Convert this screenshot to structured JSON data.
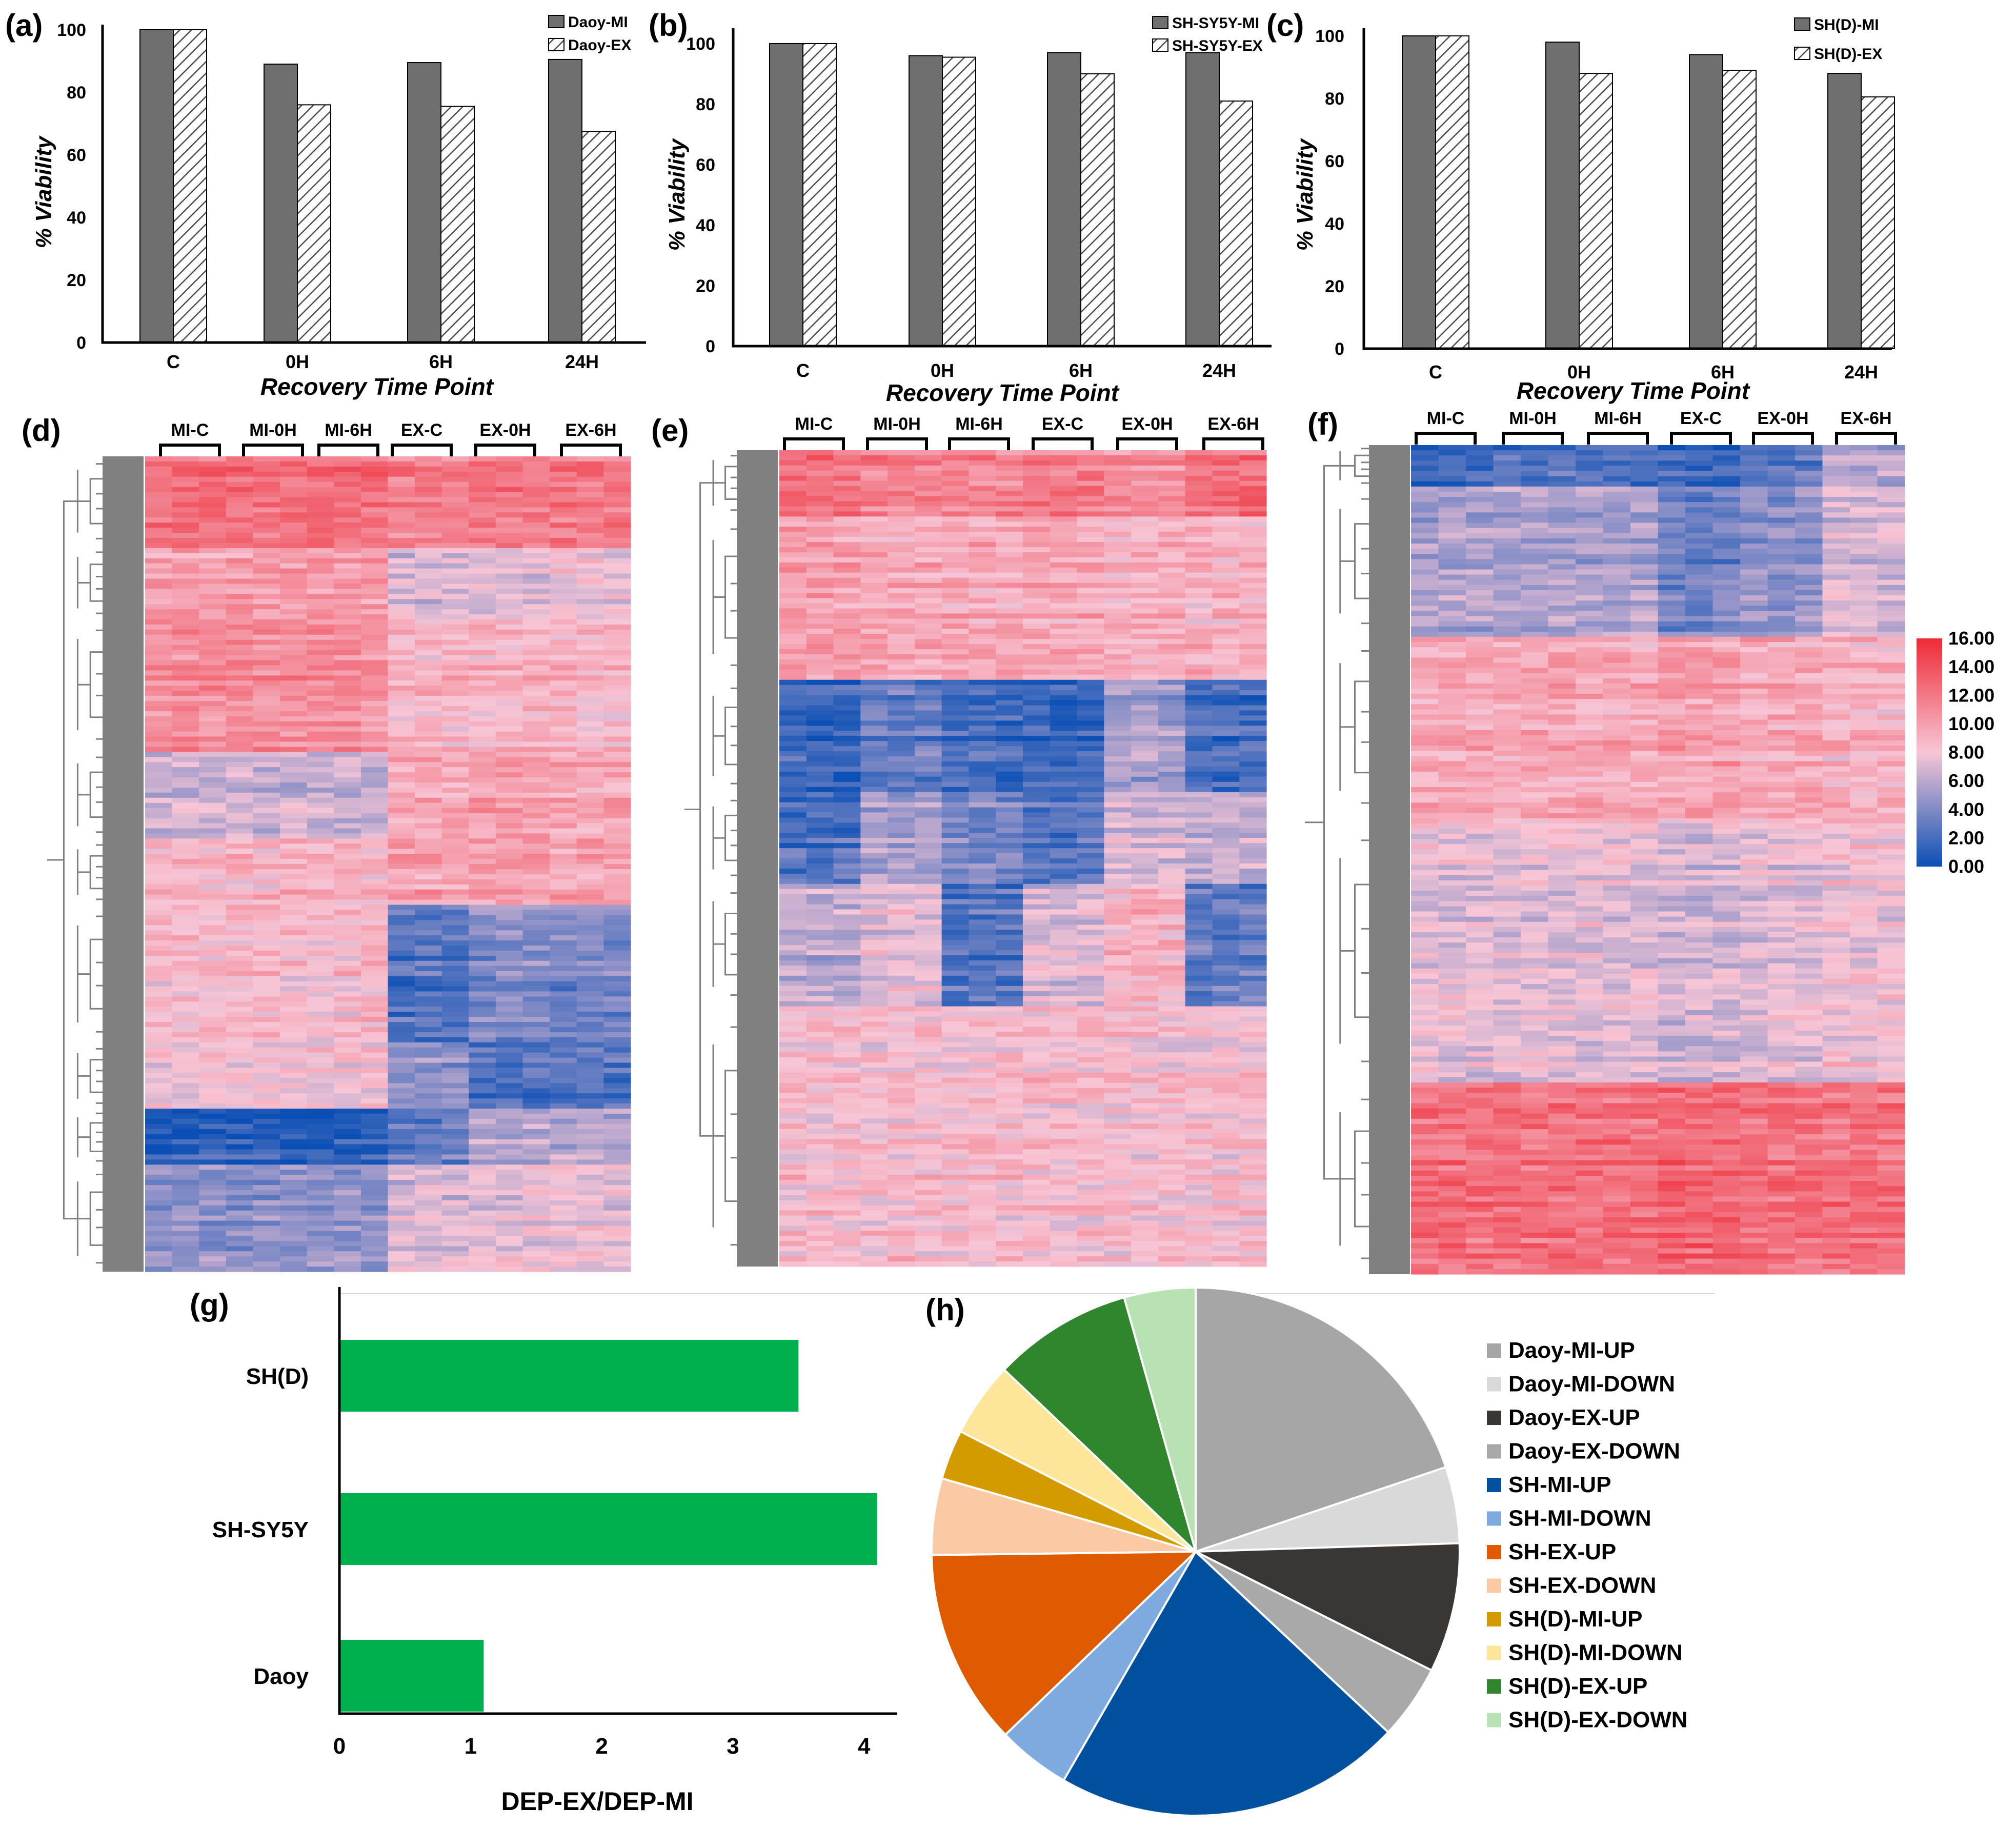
{
  "colors": {
    "bar_mi": "#6f6f6f",
    "hatch": "#4a4a4a",
    "green": "#00b04f",
    "heat_low": "#0a4fb5",
    "heat_mid": "#f7c6d6",
    "heat_high": "#ee2b36",
    "dendro": "#808080"
  },
  "chart_data": [
    {
      "id": "a",
      "panel_label": "(a)",
      "type": "bar",
      "categories": [
        "C",
        "0H",
        "6H",
        "24H"
      ],
      "series": [
        {
          "name": "Daoy-MI",
          "values": [
            100,
            89,
            89.5,
            90.5
          ]
        },
        {
          "name": "Daoy-EX",
          "values": [
            100,
            76,
            75.5,
            67.5
          ]
        }
      ],
      "ylim": [
        0,
        100
      ],
      "yticks": [
        "0",
        "20",
        "40",
        "60",
        "80",
        "100"
      ],
      "xlabel": "Recovery Time Point",
      "ylabel": "% Viability"
    },
    {
      "id": "b",
      "panel_label": "(b)",
      "type": "bar",
      "categories": [
        "C",
        "0H",
        "6H",
        "24H"
      ],
      "series": [
        {
          "name": "SH-SY5Y-MI",
          "values": [
            100,
            96,
            97,
            97
          ]
        },
        {
          "name": "SH-SY5Y-EX",
          "values": [
            100,
            95.5,
            90,
            81
          ]
        }
      ],
      "ylim": [
        0,
        100
      ],
      "yticks": [
        "0",
        "20",
        "40",
        "60",
        "80",
        "100"
      ],
      "xlabel": "Recovery Time Point",
      "ylabel": "% Viability"
    },
    {
      "id": "c",
      "panel_label": "(c)",
      "type": "bar",
      "categories": [
        "C",
        "0H",
        "6H",
        "24H"
      ],
      "series": [
        {
          "name": "SH(D)-MI",
          "values": [
            100,
            98,
            94,
            88
          ]
        },
        {
          "name": "SH(D)-EX",
          "values": [
            100,
            88,
            89,
            80.5
          ]
        }
      ],
      "ylim": [
        0,
        100
      ],
      "yticks": [
        "0",
        "20",
        "40",
        "60",
        "80",
        "100"
      ],
      "xlabel": "Recovery Time Point",
      "ylabel": "% Viability"
    },
    {
      "id": "d",
      "panel_label": "(d)",
      "type": "heatmap",
      "groups": [
        "MI-C",
        "MI-0H",
        "MI-6H",
        "EX-C",
        "EX-0H",
        "EX-6H"
      ],
      "blocks": [
        {
          "start": 0.0,
          "end": 0.11,
          "levels": [
            12.5,
            12.5,
            12.5,
            11.5,
            12,
            12
          ]
        },
        {
          "start": 0.11,
          "end": 0.2,
          "levels": [
            10,
            10,
            10,
            7,
            7,
            7.5
          ]
        },
        {
          "start": 0.2,
          "end": 0.36,
          "levels": [
            11,
            11,
            11,
            9,
            9,
            9
          ]
        },
        {
          "start": 0.36,
          "end": 0.47,
          "levels": [
            6.5,
            6.5,
            6.5,
            9.5,
            10,
            9.5
          ]
        },
        {
          "start": 0.47,
          "end": 0.55,
          "levels": [
            9,
            9,
            9,
            10,
            10,
            10
          ]
        },
        {
          "start": 0.55,
          "end": 0.72,
          "levels": [
            8.5,
            8.5,
            8.5,
            2.5,
            4,
            3.5
          ]
        },
        {
          "start": 0.72,
          "end": 0.8,
          "levels": [
            8,
            8,
            8,
            4.5,
            2.5,
            2.5
          ]
        },
        {
          "start": 0.8,
          "end": 0.87,
          "levels": [
            1,
            1,
            1,
            3,
            6,
            6
          ]
        },
        {
          "start": 0.87,
          "end": 1.0,
          "levels": [
            4.5,
            4.5,
            4.5,
            7,
            7.5,
            7.5
          ]
        }
      ]
    },
    {
      "id": "e",
      "panel_label": "(e)",
      "type": "heatmap",
      "groups": [
        "MI-C",
        "MI-0H",
        "MI-6H",
        "EX-C",
        "EX-0H",
        "EX-6H"
      ],
      "blocks": [
        {
          "start": 0.0,
          "end": 0.08,
          "levels": [
            12.5,
            11.5,
            11.5,
            12,
            11,
            12.5
          ]
        },
        {
          "start": 0.08,
          "end": 0.28,
          "levels": [
            10,
            9.5,
            9.5,
            9.5,
            9,
            9
          ]
        },
        {
          "start": 0.28,
          "end": 0.42,
          "levels": [
            1.5,
            3,
            2,
            1.5,
            5,
            2
          ]
        },
        {
          "start": 0.42,
          "end": 0.53,
          "levels": [
            2.5,
            5.5,
            4,
            2.5,
            7,
            6.5
          ]
        },
        {
          "start": 0.53,
          "end": 0.68,
          "levels": [
            6,
            7.5,
            2.5,
            7,
            9,
            3
          ]
        },
        {
          "start": 0.68,
          "end": 1.0,
          "levels": [
            8.5,
            8.5,
            8.5,
            8.5,
            8.5,
            8.5
          ]
        }
      ]
    },
    {
      "id": "f",
      "panel_label": "(f)",
      "type": "heatmap",
      "groups": [
        "MI-C",
        "MI-0H",
        "MI-6H",
        "EX-C",
        "EX-0H",
        "EX-6H"
      ],
      "blocks": [
        {
          "start": 0.0,
          "end": 0.05,
          "levels": [
            2,
            2.5,
            2.5,
            2,
            3,
            6
          ]
        },
        {
          "start": 0.05,
          "end": 0.23,
          "levels": [
            5.5,
            5.5,
            5.5,
            3.5,
            4.5,
            7
          ]
        },
        {
          "start": 0.23,
          "end": 0.45,
          "levels": [
            9.5,
            9.5,
            9.5,
            10,
            9.5,
            9
          ]
        },
        {
          "start": 0.45,
          "end": 0.77,
          "levels": [
            7.5,
            7.5,
            7.5,
            7,
            7.5,
            8
          ]
        },
        {
          "start": 0.77,
          "end": 1.0,
          "levels": [
            12.5,
            12.5,
            12.5,
            13,
            12.5,
            12.5
          ]
        }
      ]
    },
    {
      "id": "g",
      "panel_label": "(g)",
      "type": "bar",
      "orientation": "horizontal",
      "categories": [
        "SH(D)",
        "SH-SY5Y",
        "Daoy"
      ],
      "values": [
        3.5,
        4.1,
        1.1
      ],
      "xlim": [
        0,
        4.3
      ],
      "xticks": [
        "0",
        "1",
        "2",
        "3",
        "4"
      ],
      "xlabel": "DEP-EX/DEP-MI"
    },
    {
      "id": "h",
      "panel_label": "(h)",
      "type": "pie",
      "labels": [
        "Daoy-MI-UP",
        "Daoy-MI-DOWN",
        "Daoy-EX-UP",
        "Daoy-EX-DOWN",
        "SH-MI-UP",
        "SH-MI-DOWN",
        "SH-EX-UP",
        "SH-EX-DOWN",
        "SH(D)-MI-UP",
        "SH(D)-MI-DOWN",
        "SH(D)-EX-UP",
        "SH(D)-EX-DOWN"
      ],
      "values": [
        19.5,
        4.6,
        7.8,
        4.5,
        21,
        4.4,
        11.8,
        4.6,
        3,
        4.5,
        8.4,
        4.3
      ],
      "colors": [
        "#a6a6a6",
        "#d9d9d9",
        "#3a3634",
        "#a9a9a9",
        "#0050a0",
        "#7eaadf",
        "#e05a00",
        "#fbcaa4",
        "#d39b00",
        "#fde59a",
        "#2f862c",
        "#b8e2b4"
      ]
    }
  ],
  "colorbar": {
    "range": [
      0,
      16
    ],
    "ticks": [
      "16.00",
      "14.00",
      "12.00",
      "10.00",
      "8.00",
      "6.00",
      "4.00",
      "2.00",
      "0.00"
    ]
  }
}
